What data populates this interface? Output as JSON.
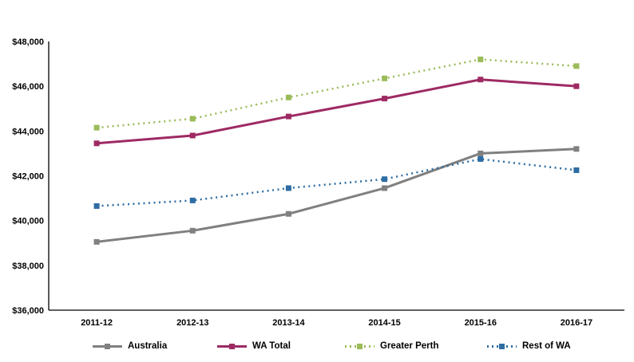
{
  "chart_data": {
    "type": "line",
    "categories": [
      "2011-12",
      "2012-13",
      "2013-14",
      "2014-15",
      "2015-16",
      "2016-17"
    ],
    "series": [
      {
        "name": "Australia",
        "color": "#808080",
        "line_style": "solid",
        "marker": "square",
        "values": [
          39050,
          39550,
          40300,
          41450,
          43000,
          43200
        ]
      },
      {
        "name": "WA Total",
        "color": "#9E2A63",
        "line_style": "solid",
        "marker": "square",
        "values": [
          43450,
          43800,
          44650,
          45450,
          46300,
          46000
        ]
      },
      {
        "name": "Greater Perth",
        "color": "#9BBB59",
        "line_style": "dotted",
        "marker": "square",
        "values": [
          44150,
          44550,
          45500,
          46350,
          47200,
          46900
        ]
      },
      {
        "name": "Rest of WA",
        "color": "#2E6DA4",
        "line_style": "dotted",
        "marker": "square",
        "values": [
          40650,
          40900,
          41450,
          41850,
          42750,
          42250
        ]
      }
    ],
    "title": "",
    "xlabel": "",
    "ylabel": "",
    "ylim": [
      36000,
      48000
    ],
    "ytick_step": 2000,
    "ytick_labels": [
      "$36,000",
      "$38,000",
      "$40,000",
      "$42,000",
      "$44,000",
      "$46,000",
      "$48,000"
    ],
    "grid": false,
    "legend_position": "bottom",
    "axis_color": "#000000"
  },
  "legend": {
    "items": [
      {
        "label": "Australia"
      },
      {
        "label": "WA Total"
      },
      {
        "label": "Greater Perth"
      },
      {
        "label": "Rest of WA"
      }
    ]
  }
}
